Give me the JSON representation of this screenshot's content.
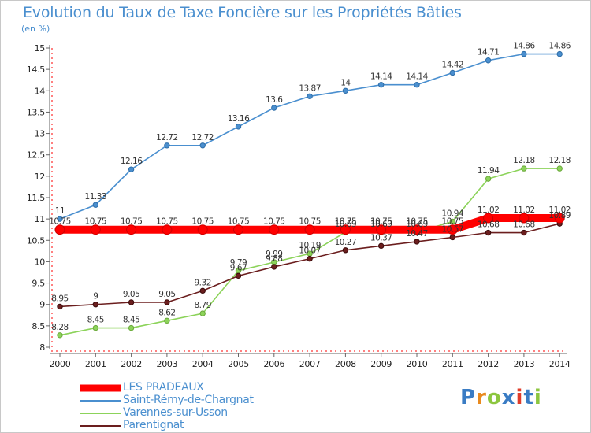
{
  "title": "Evolution du Taux de Taxe Foncière sur les Propriétés Bâties",
  "unit": "(en %)",
  "logo": {
    "text": "Proxiti",
    "colors": [
      "#3a7cc4",
      "#e98a1e",
      "#8cc63f",
      "#3a7cc4",
      "#e03c2a",
      "#3a7cc4",
      "#8cc63f"
    ]
  },
  "chart_data": {
    "type": "line",
    "title": "Evolution du Taux de Taxe Foncière sur les Propriétés Bâties",
    "ylabel": "(en %)",
    "ylim": [
      8,
      15
    ],
    "yticks": [
      "8",
      "8.5",
      "9",
      "9.5",
      "10",
      "10.5",
      "11",
      "11.5",
      "12",
      "12.5",
      "13",
      "13.5",
      "14",
      "14.5",
      "15"
    ],
    "x": [
      "2000",
      "2001",
      "2002",
      "2003",
      "2004",
      "2005",
      "2006",
      "2007",
      "2008",
      "2009",
      "2010",
      "2011",
      "2012",
      "2013",
      "2014"
    ],
    "grid": false,
    "legend_position": "bottom-left",
    "series": [
      {
        "name": "LES PRADEAUX",
        "color": "#ff0000",
        "values": [
          10.75,
          10.75,
          10.75,
          10.75,
          10.75,
          10.75,
          10.75,
          10.75,
          10.75,
          10.75,
          10.75,
          10.75,
          11.02,
          11.02,
          11.02
        ],
        "labels": [
          "10.75",
          "10.75",
          "10.75",
          "10.75",
          "10.75",
          "10.75",
          "10.75",
          "10.75",
          "10.75",
          "10.75",
          "10.75",
          "10.75",
          "11.02",
          "11.02",
          "11.02"
        ]
      },
      {
        "name": "Saint-Rémy-de-Chargnat",
        "color": "#4a8fcf",
        "values": [
          11,
          11.33,
          12.16,
          12.72,
          12.72,
          13.16,
          13.6,
          13.87,
          14,
          14.14,
          14.14,
          14.42,
          14.71,
          14.86,
          14.86
        ],
        "labels": [
          "11",
          "11.33",
          "12.16",
          "12.72",
          "12.72",
          "13.16",
          "13.6",
          "13.87",
          "14",
          "14.14",
          "14.14",
          "14.42",
          "14.71",
          "14.86",
          "14.86"
        ]
      },
      {
        "name": "Varennes-sur-Usson",
        "color": "#8cd35a",
        "values": [
          8.28,
          8.45,
          8.45,
          8.62,
          8.79,
          9.79,
          9.99,
          10.19,
          10.69,
          10.69,
          10.69,
          10.94,
          11.94,
          12.18,
          12.18
        ],
        "labels": [
          "8.28",
          "8.45",
          "8.45",
          "8.62",
          "8.79",
          "9.79",
          "9.99",
          "10.19",
          "10.69",
          "10.69",
          "10.69",
          "10.94",
          "11.94",
          "12.18",
          "12.18"
        ]
      },
      {
        "name": "Parentignat",
        "color": "#6b1e1e",
        "values": [
          8.95,
          9,
          9.05,
          9.05,
          9.32,
          9.67,
          9.88,
          10.07,
          10.27,
          10.37,
          10.47,
          10.57,
          10.68,
          10.68,
          10.89
        ],
        "labels": [
          "8.95",
          "9",
          "9.05",
          "9.05",
          "9.32",
          "9.67",
          "9.88",
          "10.07",
          "10.27",
          "10.37",
          "10.47",
          "10.57",
          "10.68",
          "10.68",
          "10.89"
        ]
      }
    ]
  }
}
